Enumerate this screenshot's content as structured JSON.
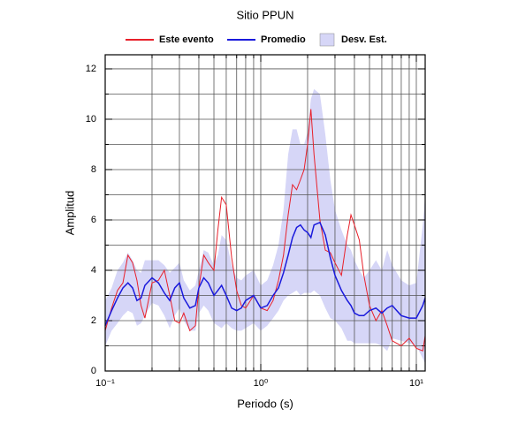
{
  "chart_data": {
    "type": "line",
    "title": "Sitio PPUN",
    "x_label": "Periodo (s)",
    "y_label": "Amplitud",
    "log_x": true,
    "grid": true,
    "legend_position": "top",
    "xlim": [
      0.1,
      11.4
    ],
    "ylim": [
      0,
      12.56
    ],
    "xticks": [
      {
        "value": 0.1,
        "label": "10⁻¹"
      },
      {
        "value": 1,
        "label": "10⁰"
      },
      {
        "value": 10,
        "label": "10¹"
      }
    ],
    "x_minor_ticks": [
      0.2,
      0.3,
      0.4,
      0.5,
      0.6,
      0.7,
      0.8,
      0.9,
      2,
      3,
      4,
      5,
      6,
      7,
      8,
      9
    ],
    "yticks": [
      0,
      2,
      4,
      6,
      8,
      10,
      12
    ],
    "y_minor_ticks": [
      1,
      3,
      5,
      7,
      9,
      11
    ],
    "x": [
      0.1,
      0.11,
      0.12,
      0.13,
      0.14,
      0.15,
      0.16,
      0.17,
      0.18,
      0.2,
      0.22,
      0.24,
      0.26,
      0.28,
      0.3,
      0.32,
      0.35,
      0.38,
      0.4,
      0.43,
      0.46,
      0.5,
      0.53,
      0.56,
      0.6,
      0.65,
      0.7,
      0.75,
      0.8,
      0.9,
      1.0,
      1.1,
      1.2,
      1.3,
      1.4,
      1.5,
      1.6,
      1.7,
      1.8,
      1.9,
      2.0,
      2.1,
      2.2,
      2.4,
      2.6,
      2.8,
      3.0,
      3.3,
      3.6,
      3.8,
      4.0,
      4.3,
      4.6,
      5.0,
      5.5,
      6,
      6.5,
      7,
      8,
      9,
      10,
      11,
      11.4
    ],
    "series": [
      {
        "name": "Este evento",
        "color": "#e8202a",
        "values": [
          1.6,
          2.5,
          3.2,
          3.5,
          4.6,
          4.3,
          3.6,
          2.6,
          2.1,
          3.5,
          3.6,
          4.0,
          3.0,
          2.0,
          1.9,
          2.3,
          1.6,
          1.8,
          3.3,
          4.6,
          4.3,
          4.0,
          5.6,
          6.9,
          6.6,
          4.5,
          3.2,
          2.6,
          2.5,
          3.0,
          2.5,
          2.4,
          2.8,
          3.6,
          4.6,
          6.2,
          7.4,
          7.2,
          7.6,
          8.0,
          9.0,
          10.4,
          8.6,
          6.0,
          4.8,
          4.7,
          4.3,
          3.8,
          5.4,
          6.2,
          5.8,
          5.2,
          3.8,
          2.6,
          2.0,
          2.4,
          1.8,
          1.2,
          1.0,
          1.3,
          0.9,
          0.8,
          1.4
        ]
      },
      {
        "name": "Promedio",
        "color": "#1a1adc",
        "values": [
          1.8,
          2.4,
          2.9,
          3.3,
          3.5,
          3.3,
          2.8,
          2.9,
          3.4,
          3.7,
          3.5,
          3.1,
          2.8,
          3.3,
          3.5,
          2.9,
          2.5,
          2.6,
          3.3,
          3.7,
          3.5,
          3.0,
          3.2,
          3.4,
          3.0,
          2.5,
          2.4,
          2.5,
          2.8,
          3.0,
          2.5,
          2.6,
          3.0,
          3.3,
          3.9,
          4.6,
          5.3,
          5.7,
          5.8,
          5.6,
          5.5,
          5.3,
          5.8,
          5.9,
          5.4,
          4.5,
          3.8,
          3.2,
          2.8,
          2.6,
          2.3,
          2.2,
          2.2,
          2.4,
          2.5,
          2.3,
          2.5,
          2.6,
          2.2,
          2.1,
          2.1,
          2.6,
          2.9
        ]
      },
      {
        "name": "Desv. Est.",
        "color": "#d6d6f7",
        "upper": [
          2.8,
          3.3,
          4.0,
          4.3,
          4.7,
          4.4,
          4.0,
          3.9,
          4.4,
          4.4,
          4.4,
          4.2,
          3.9,
          4.1,
          4.3,
          3.6,
          3.2,
          3.4,
          4.0,
          4.8,
          4.7,
          4.2,
          4.6,
          5.4,
          5.2,
          4.2,
          3.7,
          3.6,
          3.8,
          4.0,
          3.4,
          3.6,
          4.2,
          5.0,
          6.4,
          8.6,
          9.6,
          9.6,
          9.0,
          9.0,
          9.5,
          10.8,
          11.2,
          11.0,
          9.4,
          7.6,
          6.4,
          5.6,
          5.0,
          4.8,
          4.4,
          4.0,
          3.7,
          4.0,
          4.4,
          4.0,
          4.8,
          4.2,
          3.6,
          3.4,
          3.5,
          5.8,
          7.0
        ],
        "lower": [
          1.0,
          1.6,
          1.9,
          2.2,
          2.4,
          2.3,
          1.8,
          1.9,
          2.2,
          2.7,
          2.6,
          2.2,
          1.7,
          2.2,
          2.5,
          2.0,
          1.6,
          1.6,
          2.3,
          2.6,
          2.4,
          1.9,
          1.8,
          1.7,
          1.9,
          1.7,
          1.6,
          1.6,
          1.7,
          1.9,
          1.6,
          1.8,
          2.1,
          2.4,
          2.8,
          3.0,
          3.1,
          3.2,
          3.0,
          3.1,
          3.1,
          3.1,
          3.2,
          3.0,
          2.5,
          2.1,
          2.0,
          1.7,
          1.2,
          1.2,
          1.1,
          1.1,
          1.1,
          1.1,
          1.1,
          1.0,
          0.8,
          1.3,
          1.2,
          1.1,
          1.0,
          0.5,
          0.3
        ]
      }
    ]
  }
}
